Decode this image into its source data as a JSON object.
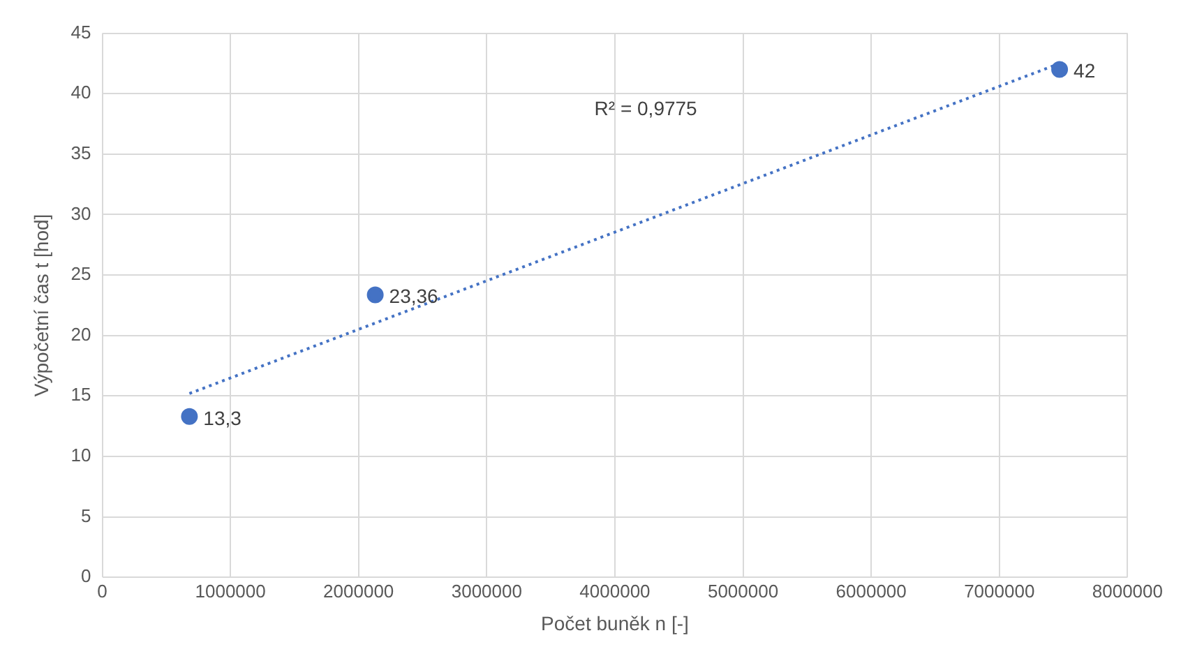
{
  "chart_data": {
    "type": "scatter",
    "xlabel": "Počet buněk n [-]",
    "ylabel": "Výpočetní čas t [hod]",
    "annotations": [
      "R² = 0,9775"
    ],
    "xlim": [
      0,
      8000000
    ],
    "xticks": [
      0,
      1000000,
      2000000,
      3000000,
      4000000,
      5000000,
      6000000,
      7000000,
      8000000
    ],
    "ylim": [
      0,
      45
    ],
    "yticks": [
      0,
      5,
      10,
      15,
      20,
      25,
      30,
      35,
      40,
      45
    ],
    "grid": true,
    "marker": "circle",
    "series": [
      {
        "type": "scatter",
        "color": "#4472c4",
        "x": [
          680000,
          2130000,
          7470000
        ],
        "values": [
          13.3,
          23.36,
          42
        ],
        "value_labels": [
          "13,3",
          "23,36",
          "42"
        ]
      },
      {
        "type": "line",
        "color": "#4472c4",
        "line_style": "dotted",
        "marker": "none",
        "x": [
          680000,
          7470000
        ],
        "values": [
          15.2,
          42.5
        ]
      }
    ]
  }
}
